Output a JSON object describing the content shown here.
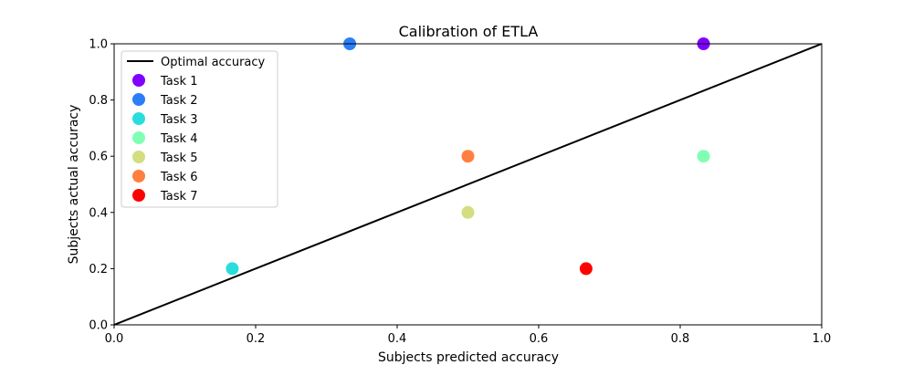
{
  "chart_data": {
    "type": "scatter",
    "title": "Calibration of ETLA",
    "xlabel": "Subjects predicted accuracy",
    "ylabel": "Subjects actual accuracy",
    "xlim": [
      0.0,
      1.0
    ],
    "ylim": [
      0.0,
      1.0
    ],
    "xticks": [
      "0.0",
      "0.2",
      "0.4",
      "0.6",
      "0.8",
      "1.0"
    ],
    "yticks": [
      "0.0",
      "0.2",
      "0.4",
      "0.6",
      "0.8",
      "1.0"
    ],
    "grid": false,
    "legend_position": "upper-left",
    "reference_line": {
      "name": "Optimal accuracy",
      "color": "#000000",
      "x": [
        0.0,
        1.0
      ],
      "y": [
        0.0,
        1.0
      ]
    },
    "series": [
      {
        "name": "Task 1",
        "color": "#8000ff",
        "x": [
          0.833
        ],
        "y": [
          1.0
        ]
      },
      {
        "name": "Task 2",
        "color": "#2c7ef7",
        "x": [
          0.333
        ],
        "y": [
          1.0
        ]
      },
      {
        "name": "Task 3",
        "color": "#2adddd",
        "x": [
          0.167
        ],
        "y": [
          0.2
        ]
      },
      {
        "name": "Task 4",
        "color": "#80ffb4",
        "x": [
          0.833
        ],
        "y": [
          0.6
        ]
      },
      {
        "name": "Task 5",
        "color": "#d4dd80",
        "x": [
          0.5
        ],
        "y": [
          0.4
        ]
      },
      {
        "name": "Task 6",
        "color": "#ff7f41",
        "x": [
          0.5
        ],
        "y": [
          0.6
        ]
      },
      {
        "name": "Task 7",
        "color": "#ff0000",
        "x": [
          0.667
        ],
        "y": [
          0.2
        ]
      }
    ]
  }
}
